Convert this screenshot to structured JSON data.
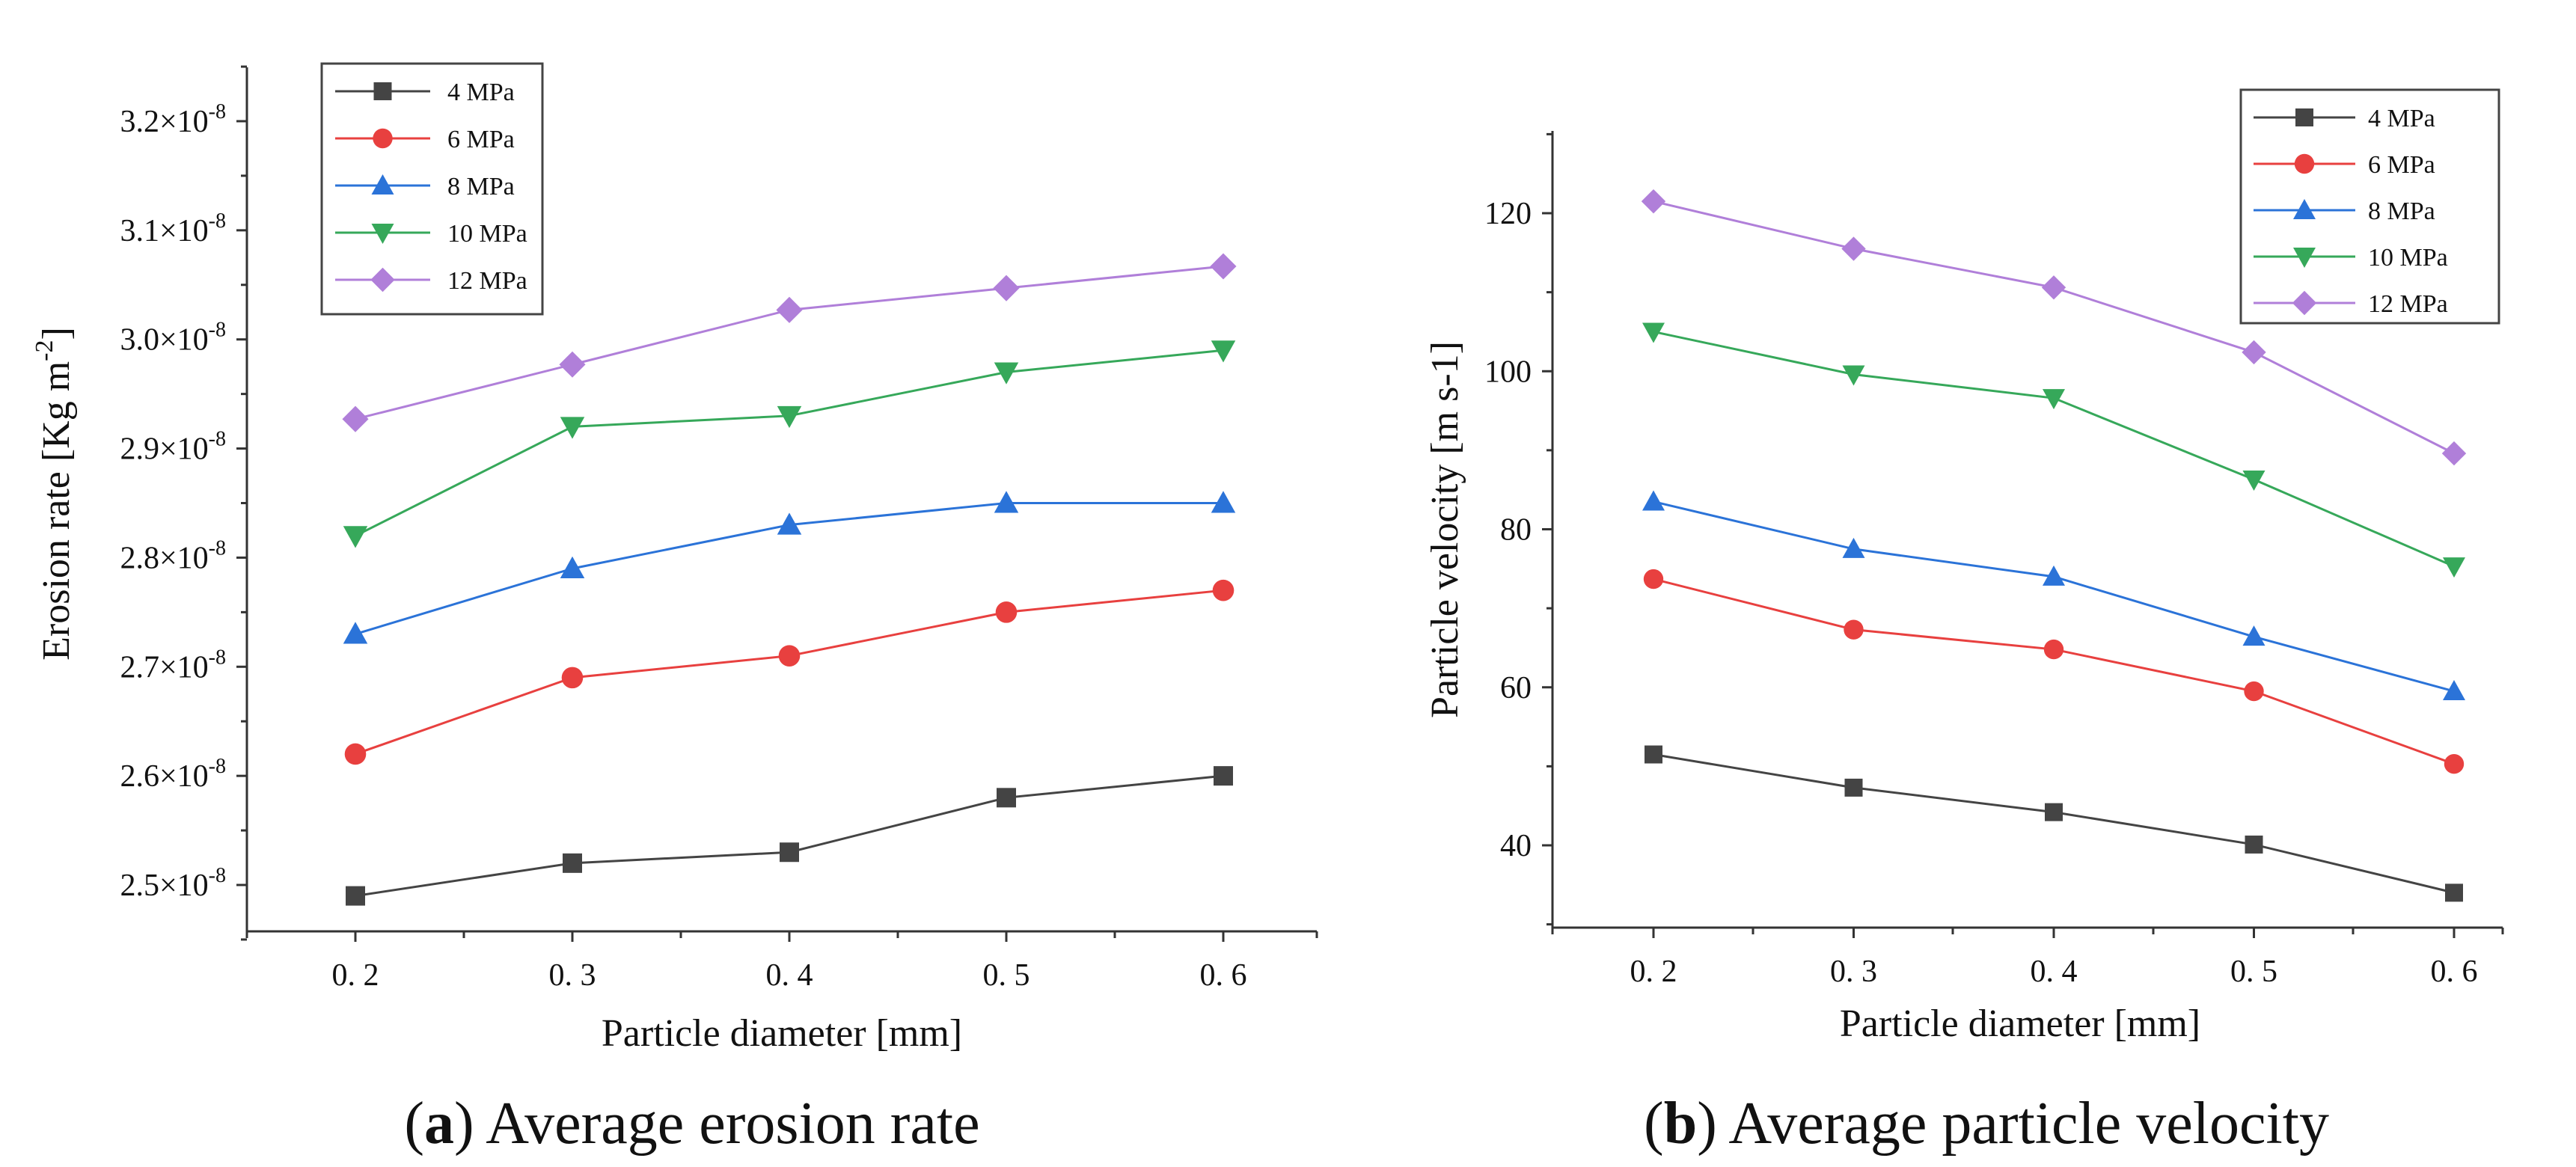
{
  "chart_data": [
    {
      "type": "line",
      "caption_letter": "a",
      "caption_text": ") Average erosion rate",
      "caption_open": "(",
      "xlabel": "Particle  diameter [mm]",
      "ylabel_main": "Erosion rate [Kg m",
      "ylabel_sup": "-2",
      "ylabel_close": "]",
      "x": [
        0.2,
        0.3,
        0.4,
        0.5,
        0.6
      ],
      "x_tick_labels": [
        "0. 2",
        "0. 3",
        "0. 4",
        "0. 5",
        "0. 6"
      ],
      "y_ticks": [
        2.5e-08,
        2.6e-08,
        2.7e-08,
        2.8e-08,
        2.9e-08,
        3e-08,
        3.1e-08,
        3.2e-08
      ],
      "y_tick_mantissas": [
        "2.5×10",
        "2.6×10",
        "2.7×10",
        "2.8×10",
        "2.9×10",
        "3.0×10",
        "3.1×10",
        "3.2×10"
      ],
      "y_tick_exponent": "-8",
      "ylim": [
        2.45e-08,
        3.25e-08
      ],
      "legend_position": "top-left",
      "series": [
        {
          "name": "4 MPa",
          "color": "#444444",
          "marker": "square",
          "values": [
            2.49e-08,
            2.52e-08,
            2.53e-08,
            2.58e-08,
            2.6e-08
          ]
        },
        {
          "name": "6 MPa",
          "color": "#e8403f",
          "marker": "circle",
          "values": [
            2.62e-08,
            2.69e-08,
            2.71e-08,
            2.75e-08,
            2.77e-08
          ]
        },
        {
          "name": "8 MPa",
          "color": "#2b73d8",
          "marker": "triangle-up",
          "values": [
            2.73e-08,
            2.79e-08,
            2.83e-08,
            2.85e-08,
            2.85e-08
          ]
        },
        {
          "name": "10 MPa",
          "color": "#36a85a",
          "marker": "triangle-down",
          "values": [
            2.82e-08,
            2.92e-08,
            2.93e-08,
            2.97e-08,
            2.99e-08
          ]
        },
        {
          "name": "12 MPa",
          "color": "#b07fd9",
          "marker": "diamond",
          "values": [
            2.927e-08,
            2.977e-08,
            3.027e-08,
            3.047e-08,
            3.067e-08
          ]
        }
      ]
    },
    {
      "type": "line",
      "caption_letter": "b",
      "caption_text": ") Average particle velocity",
      "caption_open": "(",
      "xlabel": "Particle  diameter [mm]",
      "ylabel_main": "Particle  velocity [m s-1]",
      "x": [
        0.2,
        0.3,
        0.4,
        0.5,
        0.6
      ],
      "x_tick_labels": [
        "0. 2",
        "0. 3",
        "0. 4",
        "0. 5",
        "0. 6"
      ],
      "y_ticks": [
        40,
        60,
        80,
        100,
        120
      ],
      "y_tick_labels": [
        "40",
        "60",
        "80",
        "100",
        "120"
      ],
      "ylim": [
        30,
        130
      ],
      "legend_position": "top-right",
      "series": [
        {
          "name": "4 MPa",
          "color": "#444444",
          "marker": "square",
          "values": [
            51.5,
            47.3,
            44.2,
            40.1,
            34.0
          ]
        },
        {
          "name": "6 MPa",
          "color": "#e8403f",
          "marker": "circle",
          "values": [
            73.7,
            67.3,
            64.8,
            59.5,
            50.3
          ]
        },
        {
          "name": "8 MPa",
          "color": "#2b73d8",
          "marker": "triangle-up",
          "values": [
            83.5,
            77.5,
            74.0,
            66.4,
            59.5
          ]
        },
        {
          "name": "10 MPa",
          "color": "#36a85a",
          "marker": "triangle-down",
          "values": [
            105.0,
            99.6,
            96.6,
            86.3,
            75.3
          ]
        },
        {
          "name": "12 MPa",
          "color": "#b07fd9",
          "marker": "diamond",
          "values": [
            121.5,
            115.5,
            110.6,
            102.4,
            89.6
          ]
        }
      ]
    }
  ]
}
